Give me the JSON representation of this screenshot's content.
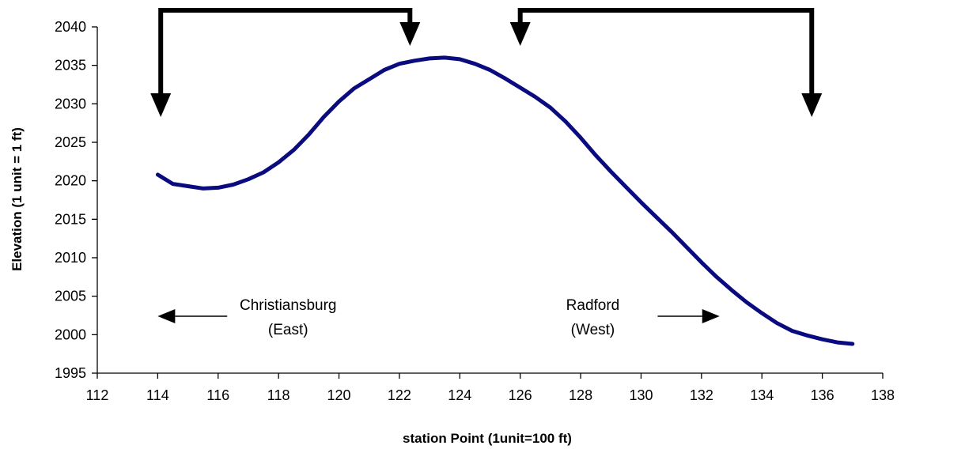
{
  "chart_data": {
    "type": "line",
    "title": "",
    "xlabel": "station Point (1unit=100 ft)",
    "ylabel": "Elevation (1 unit = 1 ft)",
    "xlim": [
      112,
      138
    ],
    "ylim": [
      1995,
      2040
    ],
    "x_ticks": [
      112,
      114,
      116,
      118,
      120,
      122,
      124,
      126,
      128,
      130,
      132,
      134,
      136,
      138
    ],
    "y_ticks": [
      1995,
      2000,
      2005,
      2010,
      2015,
      2020,
      2025,
      2030,
      2035,
      2040
    ],
    "grid": false,
    "legend": "none",
    "series": [
      {
        "color": "#0b0b80",
        "x": [
          114,
          114.5,
          115,
          115.5,
          116,
          116.5,
          117,
          117.5,
          118,
          118.5,
          119,
          119.5,
          120,
          120.5,
          121,
          121.5,
          122,
          122.5,
          123,
          123.5,
          124,
          124.5,
          125,
          125.5,
          126,
          126.5,
          127,
          127.5,
          128,
          128.5,
          129,
          129.5,
          130,
          130.5,
          131,
          131.5,
          132,
          132.5,
          133,
          133.5,
          134,
          134.5,
          135,
          135.5,
          136,
          136.5,
          137
        ],
        "y": [
          2020.8,
          2019.6,
          2019.3,
          2019.0,
          2019.1,
          2019.5,
          2020.2,
          2021.1,
          2022.4,
          2024.0,
          2026.0,
          2028.3,
          2030.3,
          2032.0,
          2033.2,
          2034.4,
          2035.2,
          2035.6,
          2035.9,
          2036.0,
          2035.8,
          2035.2,
          2034.4,
          2033.3,
          2032.1,
          2030.9,
          2029.5,
          2027.7,
          2025.6,
          2023.3,
          2021.2,
          2019.2,
          2017.2,
          2015.3,
          2013.4,
          2011.4,
          2009.4,
          2007.5,
          2005.8,
          2004.2,
          2002.8,
          2001.5,
          2000.5,
          1999.9,
          1999.4,
          1999.0,
          1998.8
        ]
      }
    ],
    "annotations": {
      "bracket_arrows": [
        {
          "from_x": 122.35,
          "to_x": 114.1,
          "color": "#000000"
        },
        {
          "from_x": 126.0,
          "to_x": 135.65,
          "color": "#000000"
        }
      ],
      "directions": [
        {
          "label_lines": [
            "Christiansburg",
            "(East)"
          ],
          "arrow": "left",
          "arrow_from_x": 116.3,
          "arrow_to_x": 114.0,
          "at_y": 2002.4
        },
        {
          "label_lines": [
            "Radford",
            "(West)"
          ],
          "arrow": "right",
          "arrow_from_x": 130.55,
          "arrow_to_x": 132.6,
          "at_y": 2002.4
        }
      ]
    }
  }
}
